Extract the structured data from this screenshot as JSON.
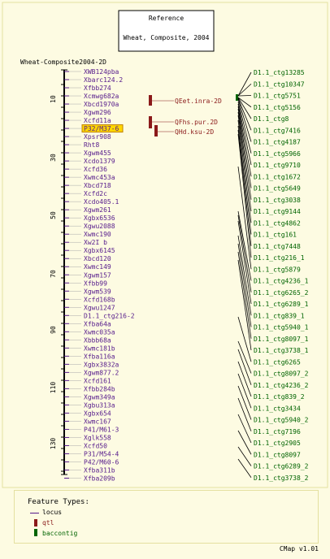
{
  "reference": {
    "title": "Reference",
    "subtitle": "Wheat, Composite, 2004"
  },
  "map_name": "Wheat-Composite2004-2D",
  "scale_ticks": [
    "10",
    "30",
    "50",
    "70",
    "90",
    "110",
    "130"
  ],
  "loci": [
    "XWB124pba",
    "Xbarc124.2",
    "Xfbb274",
    "Xcmwg682a",
    "Xbcd1970a",
    "Xgwm296",
    "Xcfd11a",
    "P32/M37-6",
    "Xpsr908",
    "Rht8",
    "Xgwm455",
    "Xcdo1379",
    "Xcfd36",
    "Xwmc453a",
    "Xbcd718",
    "Xcfd2c",
    "Xcdo405.1",
    "Xgwm261",
    "Xgbx6536",
    "Xgwu2088",
    "Xwmc190",
    "Xw2I b",
    "Xgbx6145",
    "Xbcd120",
    "Xwmc149",
    "Xgwm157",
    "Xfbb99",
    "Xgwm539",
    "Xcfd168b",
    "Xgwu1247",
    "D1.1_ctg216-2",
    "Xfba64a",
    "Xwmc035a",
    "Xbbb68a",
    "Xwmc181b",
    "Xfba116a",
    "Xgbx3832a",
    "Xgwm877.2",
    "Xcfd161",
    "Xfbb284b",
    "Xgwm349a",
    "Xgbu313a",
    "Xgbx654",
    "Xwmc167",
    "P41/M61-3",
    "Xglk558",
    "Xcfd50",
    "P31/M54-4",
    "P42/M60-6",
    "Xfba311b",
    "Xfba209b"
  ],
  "highlighted_locus": "P32/M37-6",
  "qtls": [
    "QEet.inra-2D",
    "QFhs.pur.2D",
    "QHd.ksu-2D"
  ],
  "contigs": [
    "D1.1_ctg13285",
    "D1.1_ctg10347",
    "D1.1_ctg5751",
    "D1.1_ctg5156",
    "D1.1_ctg8",
    "D1.1_ctg7416",
    "D1.1_ctg4187",
    "D1.1_ctg5966",
    "D1.1_ctg9710",
    "D1.1_ctg1672",
    "D1.1_ctg5649",
    "D1.1_ctg3038",
    "D1.1_ctg9144",
    "D1.1_ctg4862",
    "D1.1_ctg161",
    "D1.1_ctg7448",
    "D1.1_ctg216_1",
    "D1.1_ctg5879",
    "D1.1_ctg4236_1",
    "D1.1_ctg6265_2",
    "D1.1_ctg6289_1",
    "D1.1_ctg839_1",
    "D1.1_ctg5940_1",
    "D1.1_ctg8097_1",
    "D1.1_ctg3738_1",
    "D1.1_ctg6265",
    "D1.1_ctg8097_2",
    "D1.1_ctg4236_2",
    "D1.1_ctg839_2",
    "D1.1_ctg3434",
    "D1.1_ctg5940_2",
    "D1.1_ctg7196",
    "D1.1_ctg2905",
    "D1.1_ctg8097",
    "D1.1_ctg6289_2",
    "D1.1_ctg3738_2"
  ],
  "legend": {
    "title": "Feature Types:",
    "items": [
      "locus",
      "qtl",
      "baccontig"
    ]
  },
  "footer": "CMap v1.01",
  "colors": {
    "locus": "#551a8b",
    "qtl": "#8b1a1a",
    "contig": "#006400",
    "axis": "#000000",
    "highlight": "#ffd700",
    "frame": "#e4e0a0"
  }
}
